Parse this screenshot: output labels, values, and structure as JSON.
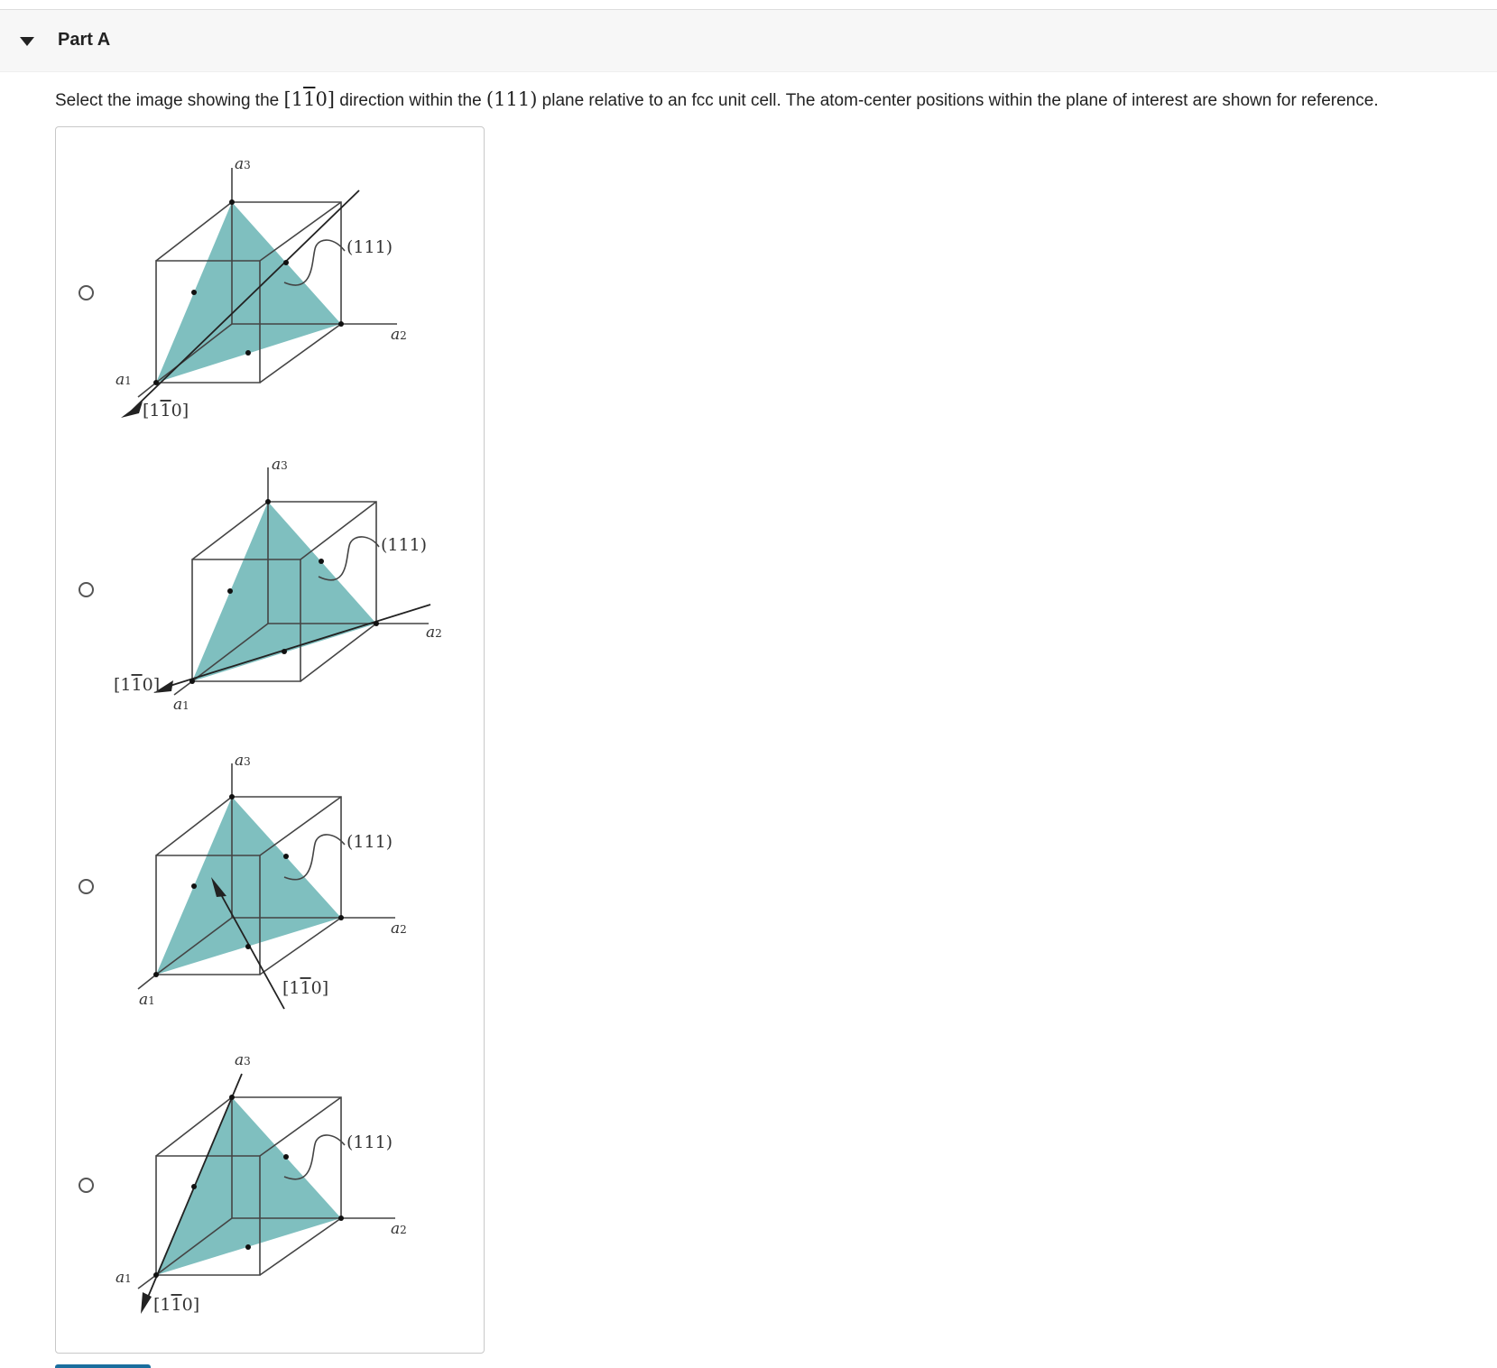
{
  "part": {
    "title": "Part A"
  },
  "question": {
    "text_before": "Select the image showing the ",
    "direction_open": "[1",
    "direction_bar": "1",
    "direction_close": "0]",
    "text_middle": " direction within the ",
    "plane": "(111)",
    "text_after": " plane relative to an fcc unit cell. The atom-center positions within the plane of interest are shown for reference."
  },
  "labels": {
    "plane": "(111)",
    "dir_open": "[1",
    "dir_bar": "1",
    "dir_close": "0]",
    "a": "a",
    "sub1": "1",
    "sub2": "2",
    "sub3": "3"
  },
  "colors": {
    "plane_fill": "#7fbfbf",
    "line": "#444444",
    "radio_border": "#555555"
  },
  "options": [
    {
      "id": "option-1",
      "selected": false
    },
    {
      "id": "option-2",
      "selected": false
    },
    {
      "id": "option-3",
      "selected": false
    },
    {
      "id": "option-4",
      "selected": false
    }
  ]
}
